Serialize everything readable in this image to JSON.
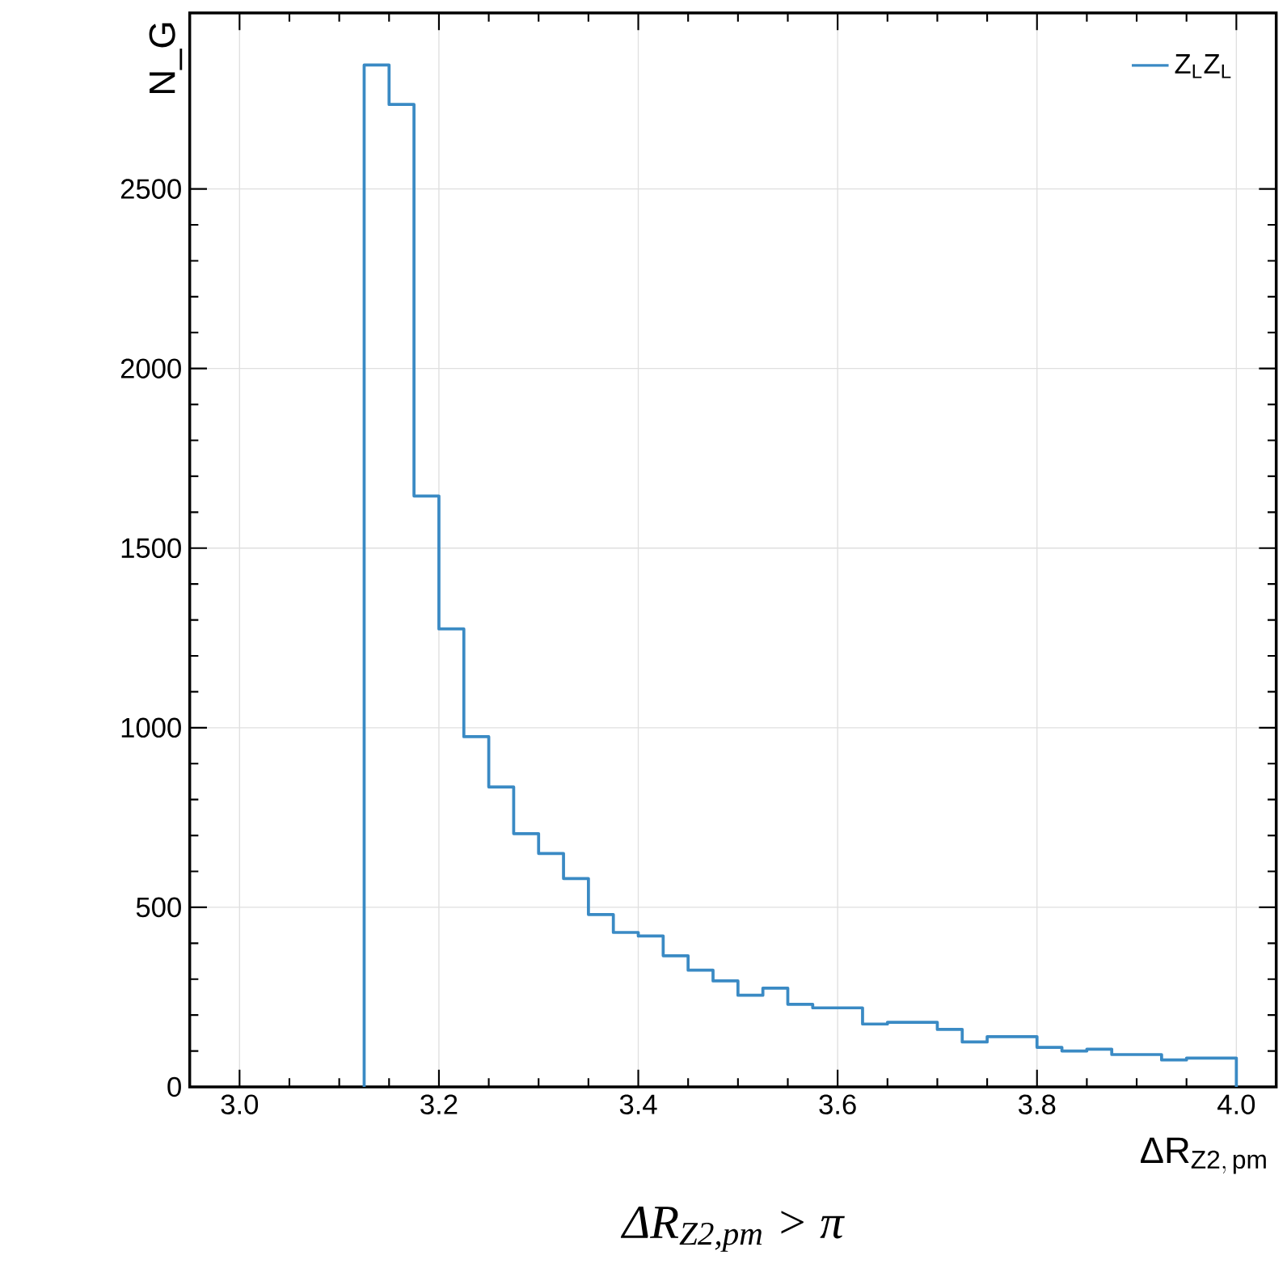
{
  "chart_data": {
    "type": "histogram",
    "xlabel": "\\hbox{Δ}\\mathrm{R}_{\\mathrm{Z2,\\,pm}}",
    "ylabel": "N_G",
    "annotations": [
      "ΔR$_{Z2,pm}$ > π"
    ],
    "bins": [
      3.125,
      3.15,
      3.175,
      3.2,
      3.225,
      3.25,
      3.275,
      3.3,
      3.325,
      3.35,
      3.375,
      3.4,
      3.425,
      3.45,
      3.475,
      3.5,
      3.525,
      3.55,
      3.575,
      3.6,
      3.625,
      3.65,
      3.675,
      3.7,
      3.725,
      3.75,
      3.775,
      3.8,
      3.825,
      3.85,
      3.875,
      3.9,
      3.925,
      3.95,
      3.975,
      4.0
    ],
    "series": [
      {
        "name": "Z$_{L}$Z$_{L}$",
        "color": "#3a8ac4",
        "values": [
          2845,
          2735,
          1645,
          1275,
          975,
          835,
          705,
          650,
          580,
          480,
          430,
          420,
          365,
          325,
          295,
          255,
          275,
          230,
          220,
          220,
          175,
          180,
          180,
          160,
          125,
          140,
          140,
          110,
          100,
          105,
          90,
          90,
          75,
          80,
          80
        ]
      }
    ],
    "xlim": [
      2.95,
      4.04
    ],
    "ylim": [
      0,
      2990
    ],
    "xticks": [
      {
        "value": 3.0,
        "label": "3.0"
      },
      {
        "value": 3.2,
        "label": "3.2"
      },
      3.4,
      3.6,
      3.8,
      {
        "value": 4.0,
        "label": "4.0"
      }
    ],
    "yticks": [
      0,
      500,
      1000,
      1500,
      2000,
      2500
    ],
    "grid": true,
    "legend": "top right"
  }
}
